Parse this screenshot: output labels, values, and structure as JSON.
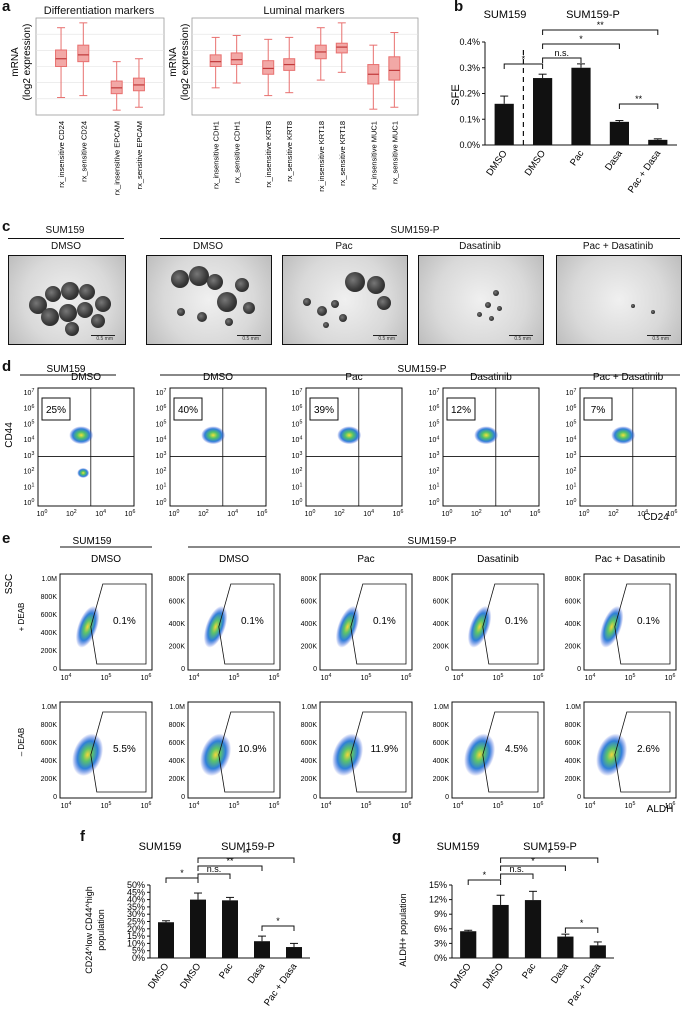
{
  "panel_labels": {
    "a": "a",
    "b": "b",
    "c": "c",
    "d": "d",
    "e": "e",
    "f": "f",
    "g": "g"
  },
  "panel_a": {
    "left_title": "Differentiation markers",
    "right_title": "Luminal markers",
    "ylabel_line1": "mRNA",
    "ylabel_line2": "(log2 expression)",
    "left_categories": [
      "rx_insensitive CD24",
      "rx_sensitive CD24",
      "rx_insensitive EPCAM",
      "rx_sensitive EPCAM"
    ],
    "right_categories": [
      "rx_insensitive CDH1",
      "rx_sensitive CDH1",
      "rx_insensitive KRT8",
      "rx_sensitive KRT8",
      "rx_insensitive KRT18",
      "rx_sensitive KRT18",
      "rx_insensitive MUC1",
      "rx_sensitive MUC1"
    ],
    "box_color": "#e8706f"
  },
  "panel_b": {
    "group1": "SUM159",
    "group2": "SUM159-P",
    "ylabel": "SFE",
    "yticks": [
      "0.4%",
      "0.3%",
      "0.2%",
      "0.1%",
      "0.0%"
    ],
    "sig": [
      "*",
      "n.s.",
      "*",
      "**",
      "**"
    ]
  },
  "panel_c": {
    "group1": "SUM159",
    "group2": "SUM159-P",
    "conditions": [
      "DMSO",
      "DMSO",
      "Pac",
      "Dasatinib",
      "Pac + Dasatinib"
    ],
    "scale_label": "0.5 mm"
  },
  "panel_d": {
    "group1": "SUM159",
    "group2": "SUM159-P",
    "conditions": [
      "DMSO",
      "DMSO",
      "Pac",
      "Dasatinib",
      "Pac + Dasatinib"
    ],
    "percents": [
      "25%",
      "40%",
      "39%",
      "12%",
      "7%"
    ],
    "yaxis_label": "CD44",
    "xaxis_label": "CD24",
    "yticks": [
      "10^7",
      "10^6",
      "10^5",
      "10^4",
      "10^3",
      "10^2",
      "10^1",
      "10^0"
    ],
    "xticks": [
      "10^0",
      "10^2",
      "10^4",
      "10^6"
    ]
  },
  "panel_e": {
    "group1": "SUM159",
    "group2": "SUM159-P",
    "conditions": [
      "DMSO",
      "DMSO",
      "Pac",
      "Dasatinib",
      "Pac + Dasatinib"
    ],
    "yaxis_label": "SSC",
    "row1_label": "+ DEAB",
    "row2_label": "– DEAB",
    "xaxis_label": "ALDH",
    "row1_percents": [
      "0.1%",
      "0.1%",
      "0.1%",
      "0.1%",
      "0.1%"
    ],
    "row2_percents": [
      "5.5%",
      "10.9%",
      "11.9%",
      "4.5%",
      "2.6%"
    ],
    "yticks_first": [
      "1.0M",
      "800K",
      "600K",
      "400K",
      "200K",
      "0"
    ],
    "yticks_other": [
      "800K",
      "600K",
      "400K",
      "200K",
      "0"
    ],
    "yticks_other_row2": [
      "1.0M",
      "800K",
      "600K",
      "400K",
      "200K",
      "0"
    ],
    "xticks": [
      "10^4",
      "10^5",
      "10^6"
    ]
  },
  "panel_f": {
    "group1": "SUM159",
    "group2": "SUM159-P",
    "ylabel_line1": "CD24^low CD44^high",
    "ylabel_line2": "population",
    "sig": [
      "*",
      "n.s.",
      "**",
      "**",
      "*"
    ]
  },
  "panel_g": {
    "group1": "SUM159",
    "group2": "SUM159-P",
    "ylabel": "ALDH+ population",
    "sig": [
      "*",
      "n.s.",
      "*",
      "*",
      "*"
    ]
  },
  "chart_data": [
    {
      "type": "bar",
      "panel": "b",
      "categories": [
        "DMSO",
        "DMSO",
        "Pac",
        "Dasa",
        "Pac + Dasa"
      ],
      "values": [
        0.16,
        0.26,
        0.3,
        0.09,
        0.02
      ],
      "errors": [
        0.03,
        0.015,
        0.015,
        0.005,
        0.004
      ],
      "ylabel": "SFE",
      "ylim": [
        0,
        0.4
      ],
      "yunit": "%",
      "color": "#111111"
    },
    {
      "type": "bar",
      "panel": "f",
      "categories": [
        "DMSO",
        "DMSO",
        "Pac",
        "Dasa",
        "Pac + Dasa"
      ],
      "values": [
        24.5,
        40,
        39.5,
        11.5,
        7.5
      ],
      "errors": [
        1,
        4.5,
        2,
        3.5,
        2.5
      ],
      "yticks": [
        "0%",
        "5%",
        "10%",
        "15%",
        "20%",
        "25%",
        "30%",
        "35%",
        "40%",
        "45%",
        "50%"
      ],
      "ylim": [
        0,
        50
      ],
      "color": "#111111"
    },
    {
      "type": "bar",
      "panel": "g",
      "categories": [
        "DMSO",
        "DMSO",
        "Pac",
        "Dasa",
        "Pac + Dasa"
      ],
      "values": [
        5.5,
        10.9,
        11.9,
        4.4,
        2.6
      ],
      "errors": [
        0.2,
        2,
        1.8,
        0.5,
        0.7
      ],
      "yticks": [
        "0%",
        "3%",
        "6%",
        "9%",
        "12%",
        "15%"
      ],
      "ylim": [
        0,
        15
      ],
      "ylabel": "ALDH+ population",
      "color": "#111111"
    },
    {
      "type": "box",
      "panel": "a-left",
      "categories": [
        "rx_insensitive CD24",
        "rx_sensitive CD24",
        "rx_insensitive EPCAM",
        "rx_sensitive EPCAM"
      ],
      "boxes": [
        {
          "min": 0.18,
          "q1": 0.5,
          "median": 0.58,
          "q3": 0.67,
          "max": 0.9
        },
        {
          "min": 0.2,
          "q1": 0.55,
          "median": 0.62,
          "q3": 0.72,
          "max": 0.95
        },
        {
          "min": 0.05,
          "q1": 0.22,
          "median": 0.28,
          "q3": 0.35,
          "max": 0.55
        },
        {
          "min": 0.08,
          "q1": 0.25,
          "median": 0.31,
          "q3": 0.38,
          "max": 0.58
        }
      ]
    },
    {
      "type": "box",
      "panel": "a-right",
      "categories": [
        "rx_insensitive CDH1",
        "rx_sensitive CDH1",
        "rx_insensitive KRT8",
        "rx_sensitive KRT8",
        "rx_insensitive KRT18",
        "rx_sensitive KRT18",
        "rx_insensitive MUC1",
        "rx_sensitive MUC1"
      ],
      "boxes": [
        {
          "min": 0.28,
          "q1": 0.5,
          "median": 0.55,
          "q3": 0.62,
          "max": 0.8
        },
        {
          "min": 0.33,
          "q1": 0.52,
          "median": 0.57,
          "q3": 0.64,
          "max": 0.82
        },
        {
          "min": 0.2,
          "q1": 0.42,
          "median": 0.48,
          "q3": 0.56,
          "max": 0.78
        },
        {
          "min": 0.23,
          "q1": 0.46,
          "median": 0.52,
          "q3": 0.58,
          "max": 0.8
        },
        {
          "min": 0.36,
          "q1": 0.58,
          "median": 0.65,
          "q3": 0.72,
          "max": 0.9
        },
        {
          "min": 0.44,
          "q1": 0.64,
          "median": 0.7,
          "q3": 0.74,
          "max": 0.95
        },
        {
          "min": 0.06,
          "q1": 0.32,
          "median": 0.42,
          "q3": 0.52,
          "max": 0.72
        },
        {
          "min": 0.08,
          "q1": 0.36,
          "median": 0.46,
          "q3": 0.6,
          "max": 0.85
        }
      ]
    }
  ]
}
